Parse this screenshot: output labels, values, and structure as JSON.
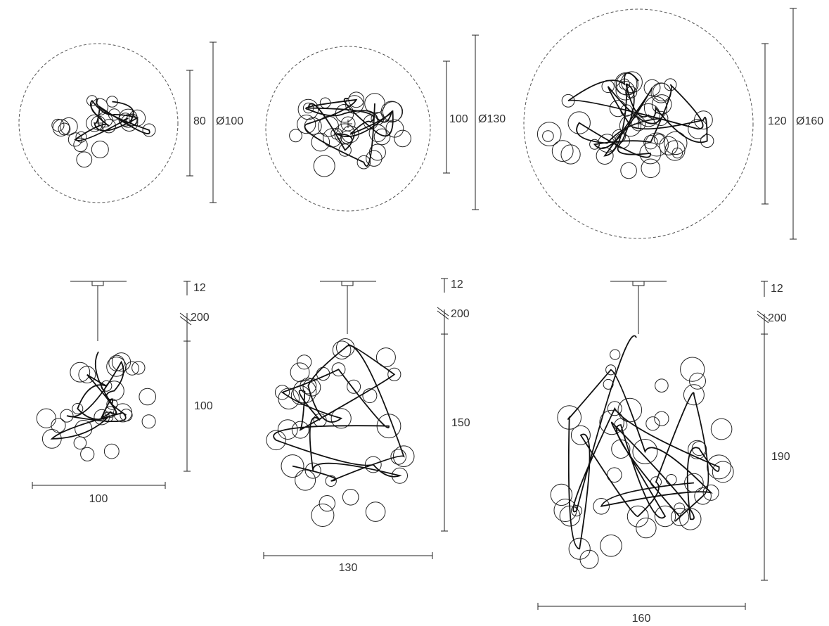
{
  "top_views": [
    {
      "height": "80",
      "diameter": "Ø100"
    },
    {
      "height": "100",
      "diameter": "Ø130"
    },
    {
      "height": "120",
      "diameter": "Ø160"
    }
  ],
  "side_views": [
    {
      "canopy": "12",
      "cable": "200",
      "height": "100",
      "width": "100"
    },
    {
      "canopy": "12",
      "cable": "200",
      "height": "150",
      "width": "130"
    },
    {
      "canopy": "12",
      "cable": "200",
      "height": "190",
      "width": "160"
    }
  ]
}
